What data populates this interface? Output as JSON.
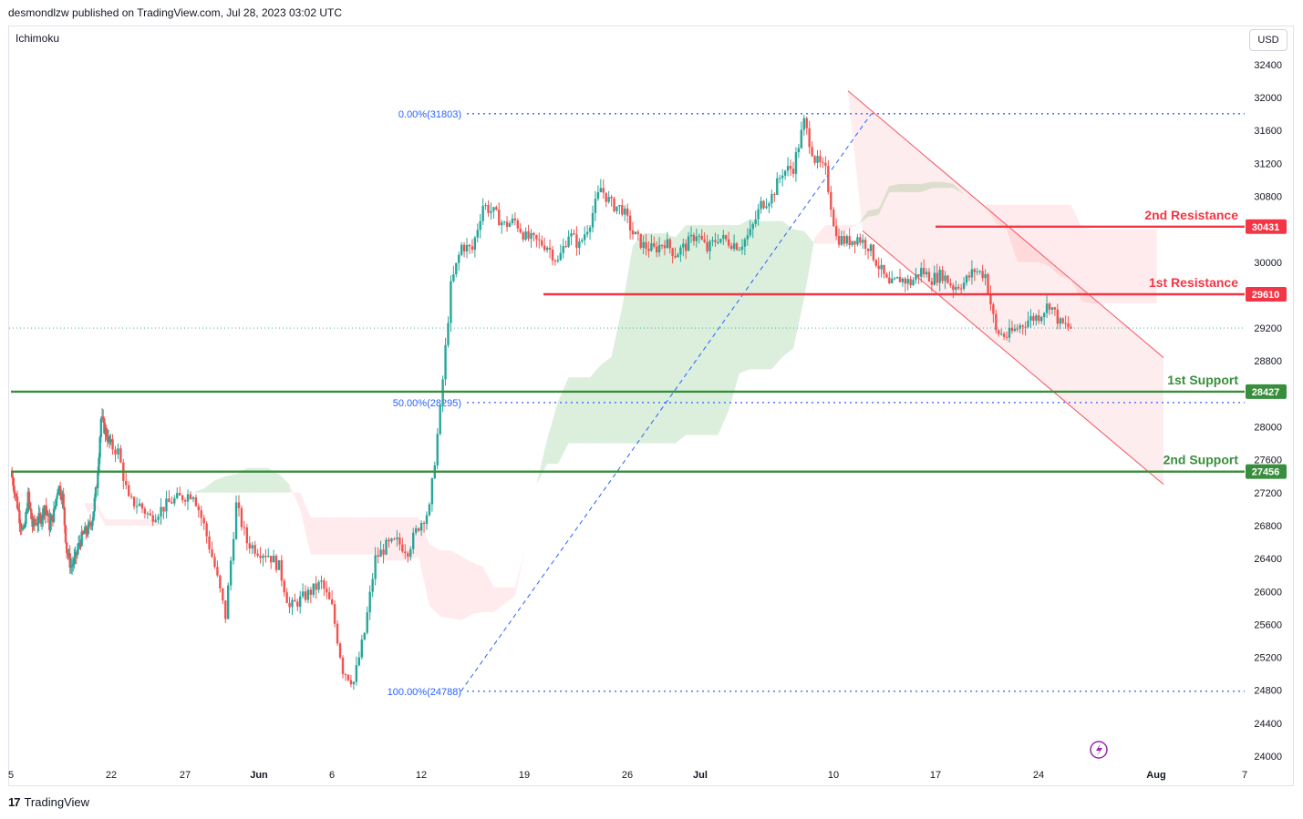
{
  "header": {
    "published": "desmondlzw published on TradingView.com, Jul 28, 2023 03:02 UTC"
  },
  "indicator": "Ichimoku",
  "currency_button": "USD",
  "footer": {
    "brand": "TradingView",
    "logo_text": "17"
  },
  "colors": {
    "up": "#26a69a",
    "down": "#ef5350",
    "resistance": "#f23645",
    "support": "#388e3c",
    "fib": "#2962ff",
    "cloud_bull": "#a5d6a7",
    "cloud_bear": "#ffcdd2",
    "channel": "#f7525f"
  },
  "chart_data": {
    "type": "candlestick",
    "y_axis_ticks": [
      32400,
      32000,
      31600,
      31200,
      30800,
      30400,
      30000,
      29600,
      29200,
      28800,
      28400,
      28000,
      27600,
      27200,
      26800,
      26400,
      26000,
      25600,
      25200,
      24800,
      24400,
      24000
    ],
    "ylim": [
      23800,
      32700
    ],
    "x_axis_ticks": [
      {
        "label": "5",
        "day": 5
      },
      {
        "label": "22",
        "day": 22
      },
      {
        "label": "27",
        "day": 27
      },
      {
        "label": "Jun",
        "day": 32
      },
      {
        "label": "6",
        "day": 37
      },
      {
        "label": "12",
        "day": 43
      },
      {
        "label": "19",
        "day": 50
      },
      {
        "label": "26",
        "day": 57
      },
      {
        "label": "Jul",
        "day": 62
      },
      {
        "label": "10",
        "day": 71
      },
      {
        "label": "17",
        "day": 78
      },
      {
        "label": "24",
        "day": 85
      },
      {
        "label": "Aug",
        "day": 93
      },
      {
        "label": "7",
        "day": 99
      }
    ],
    "levels": [
      {
        "name": "2nd Resistance",
        "value": 30431,
        "label": "30431",
        "kind": "resistance",
        "start_day": 78
      },
      {
        "name": "1st Resistance",
        "value": 29610,
        "label": "29610",
        "kind": "resistance",
        "start_day": 51.3
      },
      {
        "name": "1st Support",
        "value": 28427,
        "label": "28427",
        "kind": "support",
        "start_day": 5
      },
      {
        "name": "2nd Support",
        "value": 27456,
        "label": "27456",
        "kind": "support",
        "start_day": 5
      }
    ],
    "fibonacci": [
      {
        "label": "0.00%(31803)",
        "value": 31803
      },
      {
        "label": "50.00%(28295)",
        "value": 28295
      },
      {
        "label": "100.00%(24788)",
        "value": 24788
      }
    ],
    "fib_start": {
      "day": 45.7,
      "value": 24788
    },
    "fib_end": {
      "day": 73.6,
      "value": 31803
    },
    "current_price": 29200,
    "channel": {
      "upper": [
        {
          "day": 72,
          "value": 32080
        },
        {
          "day": 93.5,
          "value": 28840
        }
      ],
      "lower": [
        {
          "day": 73,
          "value": 30380
        },
        {
          "day": 93.5,
          "value": 27300
        }
      ]
    },
    "price_path": [
      [
        5,
        27450
      ],
      [
        6,
        27200
      ],
      [
        7,
        26900
      ],
      [
        8,
        26700
      ],
      [
        9,
        27150
      ],
      [
        10,
        26800
      ],
      [
        11,
        26850
      ],
      [
        12,
        26900
      ],
      [
        13,
        27050
      ],
      [
        14,
        26800
      ],
      [
        15,
        26950
      ],
      [
        16,
        27300
      ],
      [
        17,
        27150
      ],
      [
        18,
        26500
      ],
      [
        19,
        26300
      ],
      [
        20,
        26400
      ],
      [
        21,
        26600
      ],
      [
        22,
        26700
      ],
      [
        23,
        26750
      ],
      [
        24,
        26900
      ],
      [
        25,
        27300
      ],
      [
        26,
        28100
      ],
      [
        27,
        27950
      ],
      [
        28,
        27800
      ],
      [
        29,
        27700
      ],
      [
        30,
        27100
      ],
      [
        31,
        27050
      ],
      [
        32,
        26900
      ],
      [
        33,
        27000
      ],
      [
        34,
        27100
      ],
      [
        35,
        27150
      ],
      [
        36,
        27200
      ],
      [
        37,
        26800
      ],
      [
        38,
        26300
      ],
      [
        39,
        25700
      ],
      [
        40,
        27050
      ],
      [
        41,
        26600
      ],
      [
        42,
        26500
      ],
      [
        43,
        26450
      ],
      [
        44,
        26300
      ],
      [
        45,
        25800
      ],
      [
        46,
        25900
      ],
      [
        47,
        26000
      ],
      [
        48,
        26100
      ],
      [
        49,
        25800
      ],
      [
        50,
        25050
      ],
      [
        51,
        24900
      ],
      [
        52,
        25500
      ],
      [
        53,
        26400
      ],
      [
        54,
        26550
      ],
      [
        55,
        26600
      ],
      [
        56,
        26500
      ],
      [
        57,
        26800
      ],
      [
        58,
        27000
      ],
      [
        59,
        28200
      ],
      [
        60,
        29700
      ],
      [
        61,
        30200
      ],
      [
        62,
        30150
      ],
      [
        63,
        30700
      ],
      [
        64,
        30600
      ],
      [
        65,
        30450
      ],
      [
        66,
        30500
      ],
      [
        67,
        30300
      ],
      [
        68,
        30250
      ],
      [
        69,
        30200
      ],
      [
        70,
        30000
      ],
      [
        71,
        30350
      ],
      [
        72,
        30200
      ],
      [
        73,
        30500
      ],
      [
        74,
        30900
      ],
      [
        75,
        30700
      ],
      [
        76,
        30650
      ],
      [
        77,
        30350
      ],
      [
        78,
        30200
      ],
      [
        79,
        30150
      ],
      [
        80,
        30250
      ],
      [
        81,
        30100
      ],
      [
        82,
        30200
      ],
      [
        83,
        30350
      ],
      [
        84,
        30150
      ],
      [
        85,
        30300
      ],
      [
        86,
        30250
      ],
      [
        87,
        30200
      ],
      [
        88,
        30350
      ],
      [
        89,
        30700
      ],
      [
        90,
        30800
      ],
      [
        91,
        31100
      ],
      [
        92,
        31150
      ],
      [
        93,
        31700
      ],
      [
        94,
        31250
      ],
      [
        95,
        31100
      ],
      [
        96,
        30300
      ],
      [
        97,
        30250
      ],
      [
        98,
        30300
      ],
      [
        99,
        30200
      ],
      [
        100,
        29950
      ],
      [
        101,
        29700
      ],
      [
        102,
        29800
      ],
      [
        103,
        29750
      ],
      [
        104,
        29900
      ],
      [
        105,
        29800
      ],
      [
        106,
        29850
      ],
      [
        107,
        29700
      ],
      [
        108,
        29750
      ],
      [
        109,
        29900
      ],
      [
        110,
        29850
      ],
      [
        111,
        29150
      ],
      [
        112,
        29100
      ],
      [
        113,
        29200
      ],
      [
        114,
        29300
      ],
      [
        115,
        29350
      ],
      [
        116,
        29500
      ],
      [
        117,
        29250
      ],
      [
        118,
        29200
      ]
    ],
    "event_icon": "lightning-icon"
  }
}
